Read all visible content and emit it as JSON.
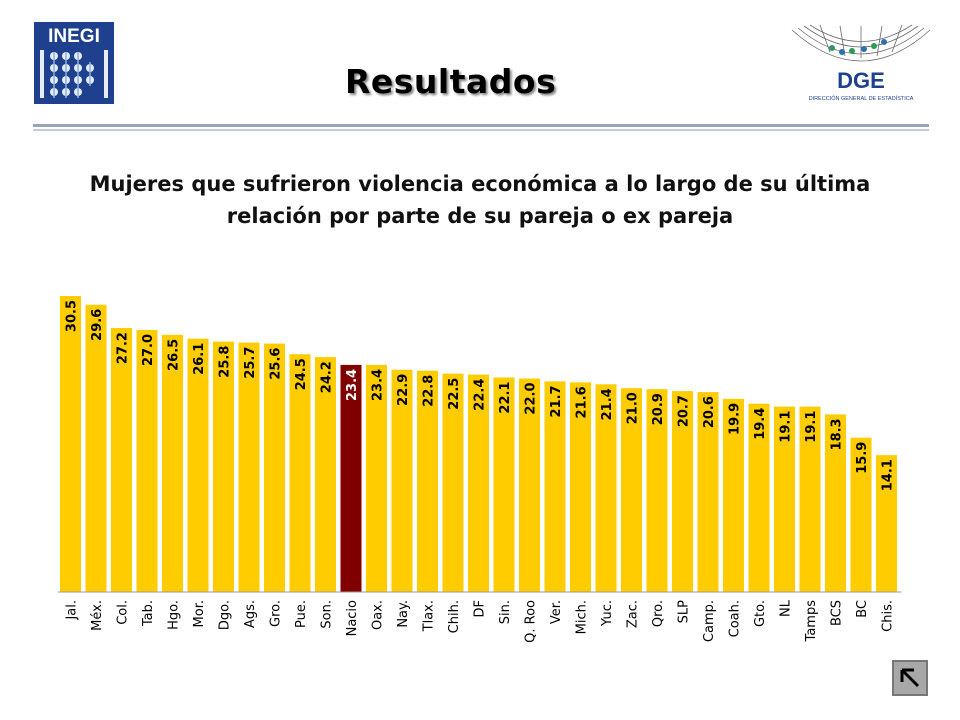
{
  "header": {
    "title": "Resultados",
    "left_logo_text": "INEGI",
    "right_logo_text": "DGE",
    "right_logo_subtext": "DIRECCIÓN GENERAL DE ESTADÍSTICA"
  },
  "colors": {
    "bar": "#FFCC00",
    "highlight": "#800000",
    "rule_dark": "#9aa4b8",
    "rule_light": "#c5ccd9"
  },
  "nav": {
    "back_icon": "back-arrow-icon"
  },
  "chart_data": {
    "type": "bar",
    "title": "Mujeres que sufrieron violencia económica a lo largo de su última relación por parte de su pareja o ex pareja",
    "categories": [
      "Jal.",
      "Méx.",
      "Col.",
      "Tab.",
      "Hgo.",
      "Mor.",
      "Dgo.",
      "Ags.",
      "Gro.",
      "Pue.",
      "Son.",
      "Nacio",
      "Oax.",
      "Nay.",
      "Tlax.",
      "Chih.",
      "DF",
      "Sin.",
      "Q. Roo",
      "Ver.",
      "Mich.",
      "Yuc.",
      "Zac.",
      "Qro.",
      "SLP",
      "Camp.",
      "Coah.",
      "Gto.",
      "NL",
      "Tamps",
      "BCS",
      "BC",
      "Chis."
    ],
    "values": [
      30.5,
      29.6,
      27.2,
      27.0,
      26.5,
      26.1,
      25.8,
      25.7,
      25.6,
      24.5,
      24.2,
      23.4,
      23.4,
      22.9,
      22.8,
      22.5,
      22.4,
      22.1,
      22.0,
      21.7,
      21.6,
      21.4,
      21.0,
      20.9,
      20.7,
      20.6,
      19.9,
      19.4,
      19.1,
      19.1,
      18.3,
      15.9,
      14.1
    ],
    "labels": [
      "30.5",
      "29.6",
      "27.2",
      "27.0",
      "26.5",
      "26.1",
      "25.8",
      "25.7",
      "25.6",
      "24.5",
      "24.2",
      "23.4",
      "23.4",
      "22.9",
      "22.8",
      "22.5",
      "22.4",
      "22.1",
      "22.0",
      "21.7",
      "21.6",
      "21.4",
      "21.0",
      "20.9",
      "20.7",
      "20.6",
      "19.9",
      "19.4",
      "19.1",
      "19.1",
      "18.3",
      "15.9",
      "14.1"
    ],
    "highlight_category": "Nacio",
    "xlabel": "",
    "ylabel": "",
    "ylim": [
      0,
      30.5
    ],
    "grid": false,
    "legend": "none"
  }
}
